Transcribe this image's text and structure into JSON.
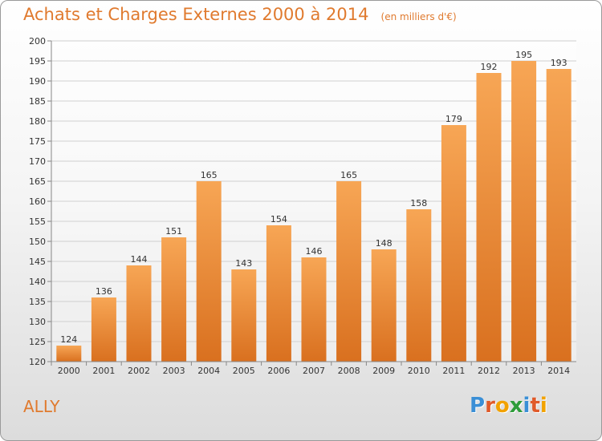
{
  "header": {
    "title": "Achats et Charges Externes 2000 à 2014",
    "unit": "(en milliers d'€)"
  },
  "footer": {
    "commune": "ALLY",
    "logo": "Proxiti",
    "logo_letters": [
      "P",
      "r",
      "o",
      "x",
      "i",
      "t",
      "i"
    ]
  },
  "colors": {
    "accent": "#e07a2e",
    "bar_light": "#f7a655",
    "bar_dark": "#d9701f",
    "logo_letter_colors": [
      "#3a8fd6",
      "#e05a2a",
      "#f2a200",
      "#2e9c3a",
      "#3a8fd6",
      "#e05a2a",
      "#f2a200"
    ]
  },
  "chart_data": {
    "type": "bar",
    "title": "Achats et Charges Externes 2000 à 2014",
    "subtitle": "(en milliers d'€)",
    "categories": [
      "2000",
      "2001",
      "2002",
      "2003",
      "2004",
      "2005",
      "2006",
      "2007",
      "2008",
      "2009",
      "2010",
      "2011",
      "2012",
      "2013",
      "2014"
    ],
    "values": [
      124,
      136,
      144,
      151,
      165,
      143,
      154,
      146,
      165,
      148,
      158,
      179,
      192,
      195,
      193
    ],
    "ylim": [
      120,
      200
    ],
    "yticks": [
      120,
      125,
      130,
      135,
      140,
      145,
      150,
      155,
      160,
      165,
      170,
      175,
      180,
      185,
      190,
      195,
      200
    ],
    "grid": true,
    "xlabel": "",
    "ylabel": ""
  }
}
